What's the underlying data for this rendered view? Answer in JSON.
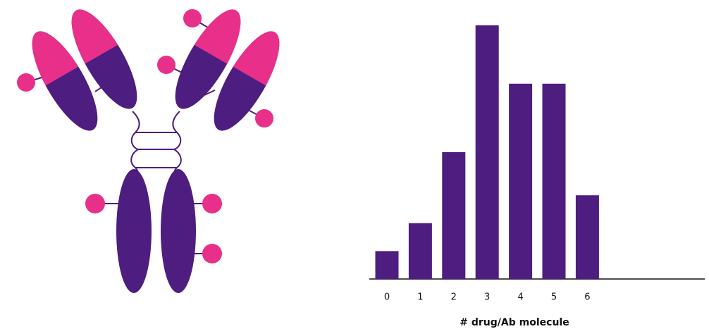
{
  "chart_data": {
    "type": "bar",
    "x_label": "# drug/Ab molecule",
    "categories": [
      "0",
      "1",
      "2",
      "3",
      "4",
      "5",
      "6"
    ],
    "values": [
      11,
      22,
      50,
      100,
      77,
      77,
      33
    ],
    "color": "#4e1d80",
    "ylim": [
      0,
      100
    ]
  }
}
